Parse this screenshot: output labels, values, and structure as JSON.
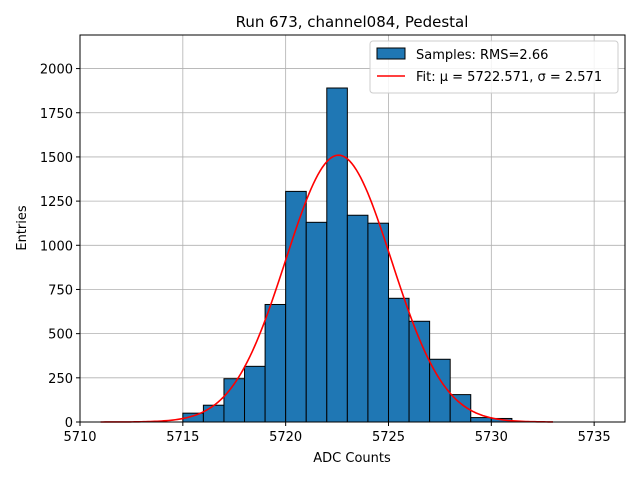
{
  "chart_data": {
    "type": "bar",
    "title": "Run 673, channel084, Pedestal",
    "xlabel": "ADC Counts",
    "ylabel": "Entries",
    "xlim": [
      5710,
      5736.5
    ],
    "ylim": [
      0,
      2190
    ],
    "xticks": [
      5710,
      5715,
      5720,
      5725,
      5730,
      5735
    ],
    "yticks": [
      0,
      250,
      500,
      750,
      1000,
      1250,
      1500,
      1750,
      2000
    ],
    "grid": true,
    "legend_position": "top-right",
    "bin_edges": [
      5715,
      5716,
      5717,
      5718,
      5719,
      5720,
      5721,
      5722,
      5723,
      5724,
      5725,
      5726,
      5727,
      5728,
      5729,
      5730,
      5731
    ],
    "series": [
      {
        "name": "Samples: RMS=2.66",
        "kind": "histogram",
        "color": "#1f77b4",
        "edgecolor": "#000000",
        "values": [
          50,
          95,
          245,
          315,
          665,
          1305,
          1130,
          1890,
          1170,
          1125,
          700,
          570,
          355,
          155,
          25,
          20
        ]
      },
      {
        "name": "Fit: μ = 5722.571, σ = 2.571",
        "kind": "gaussian-fit",
        "color": "#ff0000",
        "mu": 5722.571,
        "sigma": 2.571,
        "amplitude": 1510,
        "x_range": [
          5711,
          5733
        ]
      }
    ]
  }
}
